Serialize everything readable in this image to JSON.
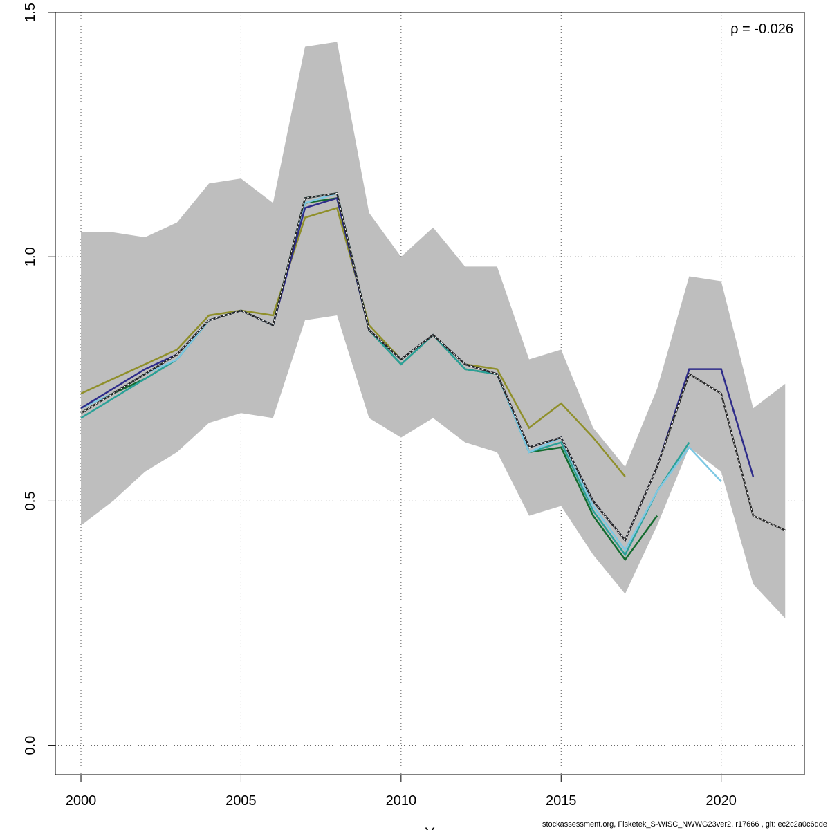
{
  "chart_data": {
    "type": "line",
    "xlabel": "Y",
    "ylabel": "",
    "xlim": [
      1999.2,
      2022.6
    ],
    "ylim": [
      -0.06,
      1.5
    ],
    "xticks": [
      2000,
      2005,
      2010,
      2015,
      2020
    ],
    "yticks": [
      0.0,
      0.5,
      1.0,
      1.5
    ],
    "xtick_labels": [
      "2000",
      "2005",
      "2010",
      "2015",
      "2020"
    ],
    "ytick_labels": [
      "0.0",
      "0.5",
      "1.0",
      "1.5"
    ],
    "grid": true,
    "annotation": "ρ = -0.026",
    "colors": {
      "band": "#bebebe",
      "base": "#222222",
      "peel1": "#2e2c8a",
      "peel2": "#7ec8e3",
      "peel3": "#2aa198",
      "peel4": "#136b2e",
      "peel5": "#8f8f2a"
    },
    "band": {
      "x": [
        2000,
        2001,
        2002,
        2003,
        2004,
        2005,
        2006,
        2007,
        2008,
        2009,
        2010,
        2011,
        2012,
        2013,
        2014,
        2015,
        2016,
        2017,
        2018,
        2019,
        2020,
        2021,
        2022
      ],
      "upper": [
        1.05,
        1.05,
        1.04,
        1.07,
        1.15,
        1.16,
        1.11,
        1.43,
        1.44,
        1.09,
        1.0,
        1.06,
        0.98,
        0.98,
        0.79,
        0.81,
        0.65,
        0.57,
        0.73,
        0.96,
        0.95,
        0.69,
        0.74
      ],
      "lower": [
        0.45,
        0.5,
        0.56,
        0.6,
        0.66,
        0.68,
        0.67,
        0.87,
        0.88,
        0.67,
        0.63,
        0.67,
        0.62,
        0.6,
        0.47,
        0.49,
        0.39,
        0.31,
        0.45,
        0.61,
        0.56,
        0.33,
        0.26
      ]
    },
    "series": [
      {
        "id": "base",
        "x": [
          2000,
          2001,
          2002,
          2003,
          2004,
          2005,
          2006,
          2007,
          2008,
          2009,
          2010,
          2011,
          2012,
          2013,
          2014,
          2015,
          2016,
          2017,
          2018,
          2019,
          2020,
          2021,
          2022
        ],
        "values": [
          0.68,
          0.72,
          0.76,
          0.8,
          0.87,
          0.89,
          0.86,
          1.12,
          1.13,
          0.85,
          0.79,
          0.84,
          0.78,
          0.76,
          0.61,
          0.63,
          0.5,
          0.42,
          0.57,
          0.76,
          0.72,
          0.47,
          0.44
        ]
      },
      {
        "id": "peel1",
        "x": [
          2000,
          2001,
          2002,
          2003,
          2004,
          2005,
          2006,
          2007,
          2008,
          2009,
          2010,
          2011,
          2012,
          2013,
          2014,
          2015,
          2016,
          2017,
          2018,
          2019,
          2020,
          2021
        ],
        "values": [
          0.69,
          0.73,
          0.77,
          0.8,
          0.87,
          0.89,
          0.86,
          1.1,
          1.12,
          0.85,
          0.79,
          0.84,
          0.78,
          0.76,
          0.61,
          0.63,
          0.5,
          0.42,
          0.57,
          0.77,
          0.77,
          0.55
        ]
      },
      {
        "id": "peel2",
        "x": [
          2000,
          2001,
          2002,
          2003,
          2004,
          2005,
          2006,
          2007,
          2008,
          2009,
          2010,
          2011,
          2012,
          2013,
          2014,
          2015,
          2016,
          2017,
          2018,
          2019,
          2020
        ],
        "values": [
          0.69,
          0.72,
          0.76,
          0.79,
          0.87,
          0.89,
          0.86,
          1.11,
          1.13,
          0.85,
          0.79,
          0.84,
          0.78,
          0.76,
          0.6,
          0.63,
          0.49,
          0.4,
          0.52,
          0.61,
          0.54
        ]
      },
      {
        "id": "peel3",
        "x": [
          2000,
          2001,
          2002,
          2003,
          2004,
          2005,
          2006,
          2007,
          2008,
          2009,
          2010,
          2011,
          2012,
          2013,
          2014,
          2015,
          2016,
          2017,
          2018,
          2019
        ],
        "values": [
          0.67,
          0.71,
          0.75,
          0.79,
          0.87,
          0.89,
          0.86,
          1.12,
          1.13,
          0.85,
          0.78,
          0.84,
          0.77,
          0.76,
          0.6,
          0.62,
          0.48,
          0.39,
          0.52,
          0.62
        ]
      },
      {
        "id": "peel4",
        "x": [
          2000,
          2001,
          2002,
          2003,
          2004,
          2005,
          2006,
          2007,
          2008,
          2009,
          2010,
          2011,
          2012,
          2013,
          2014,
          2015,
          2016,
          2017,
          2018
        ],
        "values": [
          0.68,
          0.72,
          0.75,
          0.79,
          0.87,
          0.89,
          0.86,
          1.11,
          1.12,
          0.85,
          0.78,
          0.84,
          0.77,
          0.76,
          0.6,
          0.61,
          0.47,
          0.38,
          0.47
        ]
      },
      {
        "id": "peel5",
        "x": [
          2000,
          2001,
          2002,
          2003,
          2004,
          2005,
          2006,
          2007,
          2008,
          2009,
          2010,
          2011,
          2012,
          2013,
          2014,
          2015,
          2016,
          2017
        ],
        "values": [
          0.72,
          0.75,
          0.78,
          0.81,
          0.88,
          0.89,
          0.88,
          1.08,
          1.1,
          0.86,
          0.79,
          0.84,
          0.78,
          0.77,
          0.65,
          0.7,
          0.63,
          0.55
        ]
      }
    ]
  },
  "footer": "stockassessment.org, Fisketek_S-WISC_NWWG23ver2, r17666 , git: ec2c2a0c6dde"
}
